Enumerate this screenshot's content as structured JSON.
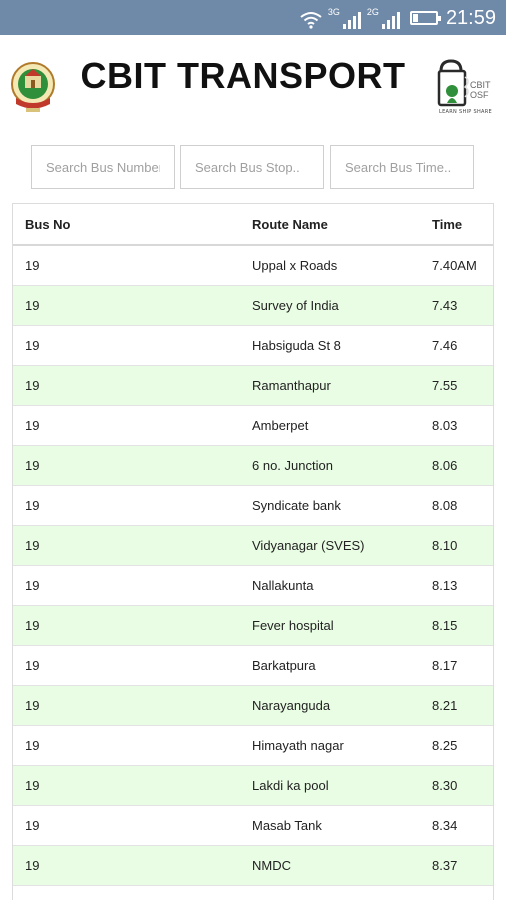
{
  "status_bar": {
    "network1": "3G",
    "network2": "2G",
    "time": "21:59"
  },
  "header": {
    "title": "CBIT TRANSPORT",
    "right_logo_text": "CBIT\nOSF",
    "right_logo_tagline": "LEARN SHIP SHARE"
  },
  "search": {
    "bus_number_placeholder": "Search Bus Number..",
    "bus_stop_placeholder": "Search Bus Stop..",
    "bus_time_placeholder": "Search Bus Time.."
  },
  "table": {
    "columns": [
      "Bus No",
      "Route Name",
      "Time"
    ],
    "rows": [
      [
        "19",
        "Uppal x Roads",
        "7.40AM"
      ],
      [
        "19",
        "Survey of India",
        "7.43"
      ],
      [
        "19",
        "Habsiguda St 8",
        "7.46"
      ],
      [
        "19",
        "Ramanthapur",
        "7.55"
      ],
      [
        "19",
        "Amberpet",
        "8.03"
      ],
      [
        "19",
        "6 no. Junction",
        "8.06"
      ],
      [
        "19",
        "Syndicate bank",
        "8.08"
      ],
      [
        "19",
        "Vidyanagar (SVES)",
        "8.10"
      ],
      [
        "19",
        "Nallakunta",
        "8.13"
      ],
      [
        "19",
        "Fever hospital",
        "8.15"
      ],
      [
        "19",
        "Barkatpura",
        "8.17"
      ],
      [
        "19",
        "Narayanguda",
        "8.21"
      ],
      [
        "19",
        "Himayath nagar",
        "8.25"
      ],
      [
        "19",
        "Lakdi ka pool",
        "8.30"
      ],
      [
        "19",
        "Masab Tank",
        "8.34"
      ],
      [
        "19",
        "NMDC",
        "8.37"
      ]
    ]
  },
  "colors": {
    "status_bar": "#6f8aa8",
    "row_alt": "#e9fde4",
    "logo_green": "#2f8f3a"
  }
}
